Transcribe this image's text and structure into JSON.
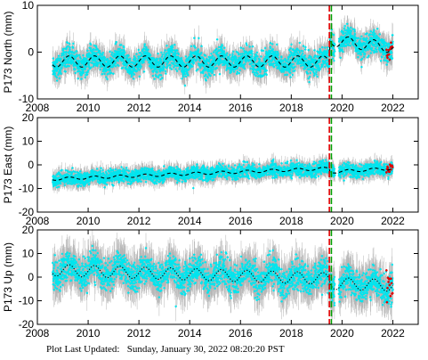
{
  "footer": {
    "label": "Plot Last Updated:",
    "timestamp": "Sunday, January 30, 2022 08:20:20 PST"
  },
  "colors": {
    "data_points": "#00e5ee",
    "error_bars": "#b4b4b4",
    "model_curve": "#000000",
    "recent_points": "#e00000",
    "event_line_red": "#e00000",
    "event_line_green": "#00a000"
  },
  "chart_data": [
    {
      "type": "scatter",
      "ylabel": "P173 North (mm)",
      "xlim": [
        2008,
        2023
      ],
      "ylim": [
        -10,
        10
      ],
      "xticks": [
        2008,
        2010,
        2012,
        2014,
        2016,
        2018,
        2020,
        2022
      ],
      "yticks": [
        -10,
        0,
        10
      ],
      "event_lines": [
        2019.5,
        2019.58
      ],
      "data_start": 2008.6,
      "data_end": 2022.0,
      "offset_at_event": 4.5,
      "trend": {
        "base": -2.0,
        "amplitude": 1.2,
        "period_years": 1.0
      },
      "post_event_decay": -1.5,
      "scatter_spread": 2.2,
      "error_bar_size": 2.0
    },
    {
      "type": "scatter",
      "ylabel": "P173 East (mm)",
      "xlim": [
        2008,
        2023
      ],
      "ylim": [
        -20,
        20
      ],
      "xticks": [
        2008,
        2010,
        2012,
        2014,
        2016,
        2018,
        2020,
        2022
      ],
      "yticks": [
        -20,
        -10,
        0,
        10,
        20
      ],
      "event_lines": [
        2019.5,
        2019.58
      ],
      "data_start": 2008.6,
      "data_end": 2022.0,
      "offset_at_event": -1.5,
      "trend": {
        "start": -6.0,
        "end": -0.5,
        "amplitude": 0.6,
        "period_years": 1.0
      },
      "post_event_decay": 0.5,
      "scatter_spread": 2.5,
      "error_bar_size": 2.5
    },
    {
      "type": "scatter",
      "ylabel": "P173 Up (mm)",
      "xlim": [
        2008,
        2023
      ],
      "ylim": [
        -20,
        20
      ],
      "xticks": [
        2008,
        2010,
        2012,
        2014,
        2016,
        2018,
        2020,
        2022
      ],
      "yticks": [
        -20,
        -10,
        0,
        10,
        20
      ],
      "event_lines": [
        2019.5,
        2019.58
      ],
      "data_start": 2008.6,
      "data_end": 2022.0,
      "offset_at_event": -2.0,
      "trend": {
        "start": 3.0,
        "end": -1.5,
        "amplitude": 2.5,
        "period_years": 1.0
      },
      "post_event_decay": 0.0,
      "scatter_spread": 5.5,
      "error_bar_size": 6.0
    }
  ]
}
